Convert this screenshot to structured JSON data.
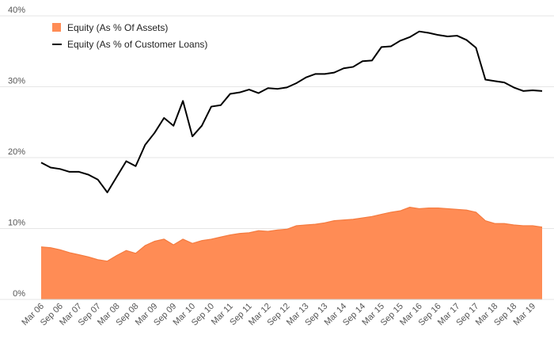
{
  "chart_data": {
    "type": "area",
    "title": "",
    "xlabel": "",
    "ylabel": "",
    "ylim": [
      0,
      40
    ],
    "y_ticks": [
      0,
      10,
      20,
      30,
      40
    ],
    "y_tick_labels": [
      "0%",
      "10%",
      "20%",
      "30%",
      "40%"
    ],
    "grid": true,
    "legend_position": "top-left",
    "x": [
      "Mar 06",
      "Jun 06",
      "Sep 06",
      "Dec 06",
      "Mar 07",
      "Jun 07",
      "Sep 07",
      "Dec 07",
      "Mar 08",
      "Jun 08",
      "Sep 08",
      "Dec 08",
      "Mar 09",
      "Jun 09",
      "Sep 09",
      "Dec 09",
      "Mar 10",
      "Jun 10",
      "Sep 10",
      "Dec 10",
      "Mar 11",
      "Jun 11",
      "Sep 11",
      "Dec 11",
      "Mar 12",
      "Jun 12",
      "Sep 12",
      "Dec 12",
      "Mar 13",
      "Jun 13",
      "Sep 13",
      "Dec 13",
      "Mar 14",
      "Jun 14",
      "Sep 14",
      "Dec 14",
      "Mar 15",
      "Jun 15",
      "Sep 15",
      "Dec 15",
      "Mar 16",
      "Jun 16",
      "Sep 16",
      "Dec 16",
      "Mar 17",
      "Jun 17",
      "Sep 17",
      "Dec 17",
      "Mar 18",
      "Jun 18",
      "Sep 18",
      "Dec 18",
      "Mar 19",
      "Jun 19"
    ],
    "x_tick_labels": [
      "Mar 06",
      "Sep 06",
      "Mar 07",
      "Sep 07",
      "Mar 08",
      "Sep 08",
      "Mar 09",
      "Sep 09",
      "Mar 10",
      "Sep 10",
      "Mar 11",
      "Sep 11",
      "Mar 12",
      "Sep 12",
      "Mar 13",
      "Sep 13",
      "Mar 14",
      "Sep 14",
      "Mar 15",
      "Sep 15",
      "Mar 16",
      "Sep 16",
      "Mar 17",
      "Sep 17",
      "Mar 18",
      "Sep 18",
      "Mar 19"
    ],
    "series": [
      {
        "name": "Equity (As % Of Assets)",
        "type": "area",
        "color": "#ff8c55",
        "values": [
          7.4,
          7.3,
          7.0,
          6.6,
          6.3,
          6.0,
          5.6,
          5.4,
          6.2,
          6.9,
          6.5,
          7.6,
          8.2,
          8.5,
          7.7,
          8.5,
          7.9,
          8.3,
          8.5,
          8.8,
          9.1,
          9.3,
          9.4,
          9.7,
          9.6,
          9.8,
          9.9,
          10.4,
          10.5,
          10.6,
          10.8,
          11.1,
          11.2,
          11.3,
          11.5,
          11.7,
          12.0,
          12.3,
          12.5,
          13.0,
          12.8,
          12.9,
          12.9,
          12.8,
          12.7,
          12.6,
          12.3,
          11.1,
          10.7,
          10.7,
          10.5,
          10.4,
          10.4,
          10.2
        ]
      },
      {
        "name": "Equity (As % of Customer Loans)",
        "type": "line",
        "color": "#000000",
        "values": [
          19.3,
          18.6,
          18.4,
          18.0,
          18.0,
          17.6,
          16.9,
          15.1,
          17.3,
          19.5,
          18.8,
          21.8,
          23.5,
          25.6,
          24.5,
          28.0,
          23.0,
          24.5,
          27.2,
          27.4,
          29.0,
          29.2,
          29.6,
          29.1,
          29.8,
          29.7,
          29.9,
          30.5,
          31.3,
          31.8,
          31.8,
          32.0,
          32.6,
          32.8,
          33.6,
          33.7,
          35.6,
          35.7,
          36.5,
          37.0,
          37.8,
          37.6,
          37.3,
          37.1,
          37.2,
          36.6,
          35.5,
          31.0,
          30.8,
          30.6,
          29.9,
          29.4,
          29.5,
          29.4
        ]
      }
    ]
  }
}
